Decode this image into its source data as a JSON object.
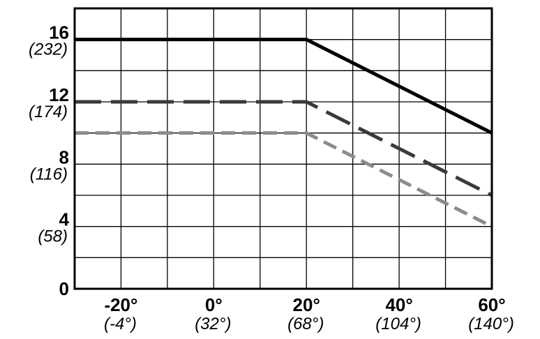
{
  "chart_data": {
    "type": "line",
    "title": "",
    "xlabel": "",
    "ylabel": "",
    "x_ticks": [
      {
        "value": -20,
        "label": "-20°",
        "sublabel": "(-4°)"
      },
      {
        "value": 0,
        "label": "0°",
        "sublabel": "(32°)"
      },
      {
        "value": 20,
        "label": "20°",
        "sublabel": "(68°)"
      },
      {
        "value": 40,
        "label": "40°",
        "sublabel": "(104°)"
      },
      {
        "value": 60,
        "label": "60°",
        "sublabel": "(140°)"
      }
    ],
    "y_ticks": [
      {
        "value": 0,
        "label": "0",
        "sublabel": ""
      },
      {
        "value": 4,
        "label": "4",
        "sublabel": "(58)"
      },
      {
        "value": 8,
        "label": "8",
        "sublabel": "(116)"
      },
      {
        "value": 12,
        "label": "12",
        "sublabel": "(174)"
      },
      {
        "value": 16,
        "label": "16",
        "sublabel": "(232)"
      }
    ],
    "xlim": [
      -30,
      60
    ],
    "ylim": [
      0,
      18
    ],
    "grid": true,
    "series": [
      {
        "style": "solid",
        "color": "#000000",
        "points": [
          [
            -30,
            16
          ],
          [
            20,
            16
          ],
          [
            60,
            10
          ]
        ]
      },
      {
        "style": "long-dash",
        "color": "#3a3a3a",
        "points": [
          [
            -30,
            12
          ],
          [
            20,
            12
          ],
          [
            60,
            6
          ]
        ]
      },
      {
        "style": "short-dash",
        "color": "#8c8c8c",
        "points": [
          [
            -30,
            10
          ],
          [
            20,
            10
          ],
          [
            60,
            4
          ]
        ]
      }
    ]
  }
}
